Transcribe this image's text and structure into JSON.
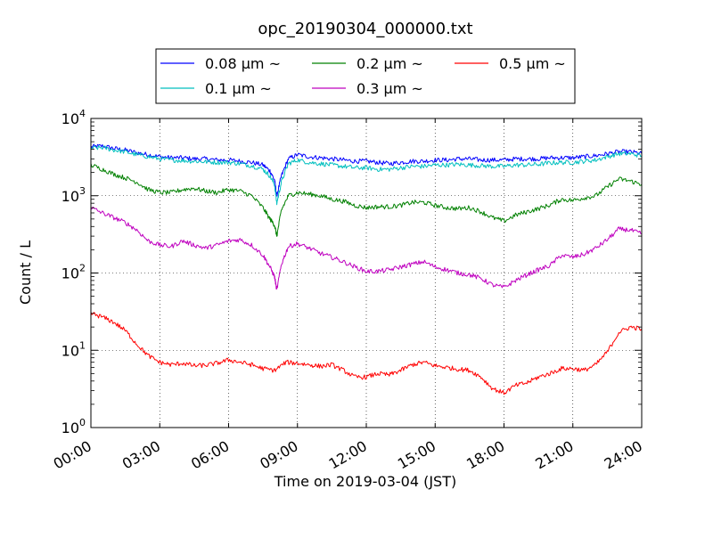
{
  "chart_data": {
    "type": "line",
    "title": "opc_20190304_000000.txt",
    "xlabel": "Time on 2019-03-04 (JST)",
    "ylabel": "Count / L",
    "x_unit": "hour of day",
    "xlim": [
      0,
      24
    ],
    "ylim": [
      1,
      10000
    ],
    "y_scale": "log",
    "grid": true,
    "legend_position": "top-center",
    "x_ticks": [
      {
        "hour": 0,
        "label": "00:00"
      },
      {
        "hour": 3,
        "label": "03:00"
      },
      {
        "hour": 6,
        "label": "06:00"
      },
      {
        "hour": 9,
        "label": "09:00"
      },
      {
        "hour": 12,
        "label": "12:00"
      },
      {
        "hour": 15,
        "label": "15:00"
      },
      {
        "hour": 18,
        "label": "18:00"
      },
      {
        "hour": 21,
        "label": "21:00"
      },
      {
        "hour": 24,
        "label": "24:00"
      }
    ],
    "y_ticks": [
      {
        "value": 1,
        "exp": "0"
      },
      {
        "value": 10,
        "exp": "1"
      },
      {
        "value": 100,
        "exp": "2"
      },
      {
        "value": 1000,
        "exp": "3"
      },
      {
        "value": 10000,
        "exp": "4"
      }
    ],
    "series": [
      {
        "name": "0.08 μm ~",
        "color": "#0000ff",
        "points": [
          [
            0,
            4300
          ],
          [
            0.5,
            4400
          ],
          [
            1,
            4100
          ],
          [
            1.5,
            3900
          ],
          [
            2,
            3600
          ],
          [
            2.5,
            3400
          ],
          [
            3,
            3200
          ],
          [
            3.5,
            3100
          ],
          [
            4,
            3100
          ],
          [
            4.5,
            3000
          ],
          [
            5,
            3000
          ],
          [
            5.5,
            2900
          ],
          [
            6,
            2900
          ],
          [
            6.5,
            2800
          ],
          [
            7,
            2700
          ],
          [
            7.5,
            2500
          ],
          [
            7.8,
            2100
          ],
          [
            8,
            1600
          ],
          [
            8.1,
            1000
          ],
          [
            8.3,
            1800
          ],
          [
            8.6,
            3000
          ],
          [
            9,
            3400
          ],
          [
            9.5,
            3200
          ],
          [
            10,
            3100
          ],
          [
            10.5,
            3000
          ],
          [
            11,
            2900
          ],
          [
            11.5,
            2800
          ],
          [
            12,
            2800
          ],
          [
            12.5,
            2700
          ],
          [
            13,
            2600
          ],
          [
            13.5,
            2700
          ],
          [
            14,
            2800
          ],
          [
            14.5,
            2800
          ],
          [
            15,
            2900
          ],
          [
            15.5,
            2900
          ],
          [
            16,
            3000
          ],
          [
            16.5,
            3000
          ],
          [
            17,
            2900
          ],
          [
            17.5,
            2900
          ],
          [
            18,
            2900
          ],
          [
            18.5,
            3000
          ],
          [
            19,
            3000
          ],
          [
            19.5,
            3000
          ],
          [
            20,
            3100
          ],
          [
            20.5,
            3100
          ],
          [
            21,
            3100
          ],
          [
            21.5,
            3200
          ],
          [
            22,
            3300
          ],
          [
            22.5,
            3500
          ],
          [
            23,
            3700
          ],
          [
            23.5,
            3700
          ],
          [
            24,
            3500
          ]
        ]
      },
      {
        "name": "0.1 μm ~",
        "color": "#00bfbf",
        "points": [
          [
            0,
            4100
          ],
          [
            0.5,
            4200
          ],
          [
            1,
            3900
          ],
          [
            1.5,
            3700
          ],
          [
            2,
            3400
          ],
          [
            2.5,
            3200
          ],
          [
            3,
            3000
          ],
          [
            3.5,
            2900
          ],
          [
            4,
            2850
          ],
          [
            4.5,
            2800
          ],
          [
            5,
            2750
          ],
          [
            5.5,
            2700
          ],
          [
            6,
            2700
          ],
          [
            6.5,
            2600
          ],
          [
            7,
            2450
          ],
          [
            7.5,
            2200
          ],
          [
            7.8,
            1800
          ],
          [
            8,
            1400
          ],
          [
            8.1,
            800
          ],
          [
            8.3,
            1500
          ],
          [
            8.6,
            2600
          ],
          [
            9,
            2900
          ],
          [
            9.5,
            2700
          ],
          [
            10,
            2600
          ],
          [
            10.5,
            2500
          ],
          [
            11,
            2400
          ],
          [
            11.5,
            2300
          ],
          [
            12,
            2300
          ],
          [
            12.5,
            2200
          ],
          [
            13,
            2200
          ],
          [
            13.5,
            2300
          ],
          [
            14,
            2400
          ],
          [
            14.5,
            2400
          ],
          [
            15,
            2500
          ],
          [
            15.5,
            2500
          ],
          [
            16,
            2550
          ],
          [
            16.5,
            2500
          ],
          [
            17,
            2450
          ],
          [
            17.5,
            2400
          ],
          [
            18,
            2400
          ],
          [
            18.5,
            2500
          ],
          [
            19,
            2500
          ],
          [
            19.5,
            2550
          ],
          [
            20,
            2650
          ],
          [
            20.5,
            2700
          ],
          [
            21,
            2700
          ],
          [
            21.5,
            2800
          ],
          [
            22,
            2900
          ],
          [
            22.5,
            3200
          ],
          [
            23,
            3500
          ],
          [
            23.5,
            3500
          ],
          [
            24,
            3300
          ]
        ]
      },
      {
        "name": "0.2 μm ~",
        "color": "#008000",
        "points": [
          [
            0,
            2500
          ],
          [
            0.5,
            2200
          ],
          [
            1,
            1900
          ],
          [
            1.5,
            1700
          ],
          [
            2,
            1500
          ],
          [
            2.5,
            1200
          ],
          [
            3,
            1100
          ],
          [
            3.5,
            1100
          ],
          [
            4,
            1200
          ],
          [
            4.5,
            1250
          ],
          [
            5,
            1150
          ],
          [
            5.5,
            1100
          ],
          [
            6,
            1200
          ],
          [
            6.5,
            1150
          ],
          [
            7,
            1000
          ],
          [
            7.5,
            700
          ],
          [
            7.8,
            500
          ],
          [
            8,
            420
          ],
          [
            8.1,
            300
          ],
          [
            8.3,
            650
          ],
          [
            8.6,
            1000
          ],
          [
            9,
            1100
          ],
          [
            9.5,
            1050
          ],
          [
            10,
            1000
          ],
          [
            10.5,
            900
          ],
          [
            11,
            850
          ],
          [
            11.5,
            750
          ],
          [
            12,
            700
          ],
          [
            12.5,
            720
          ],
          [
            13,
            720
          ],
          [
            13.5,
            750
          ],
          [
            14,
            820
          ],
          [
            14.5,
            820
          ],
          [
            15,
            750
          ],
          [
            15.5,
            700
          ],
          [
            16,
            680
          ],
          [
            16.5,
            700
          ],
          [
            17,
            620
          ],
          [
            17.5,
            520
          ],
          [
            18,
            470
          ],
          [
            18.5,
            560
          ],
          [
            19,
            620
          ],
          [
            19.5,
            680
          ],
          [
            20,
            760
          ],
          [
            20.5,
            900
          ],
          [
            21,
            870
          ],
          [
            21.5,
            940
          ],
          [
            22,
            1000
          ],
          [
            22.5,
            1300
          ],
          [
            23,
            1650
          ],
          [
            23.5,
            1550
          ],
          [
            24,
            1400
          ]
        ]
      },
      {
        "name": "0.3 μm ~",
        "color": "#bf00bf",
        "points": [
          [
            0,
            700
          ],
          [
            0.5,
            600
          ],
          [
            1,
            520
          ],
          [
            1.5,
            450
          ],
          [
            2,
            360
          ],
          [
            2.5,
            260
          ],
          [
            3,
            230
          ],
          [
            3.5,
            220
          ],
          [
            4,
            260
          ],
          [
            4.5,
            230
          ],
          [
            5,
            210
          ],
          [
            5.5,
            230
          ],
          [
            6,
            260
          ],
          [
            6.5,
            270
          ],
          [
            7,
            230
          ],
          [
            7.5,
            170
          ],
          [
            7.8,
            120
          ],
          [
            8,
            90
          ],
          [
            8.1,
            60
          ],
          [
            8.3,
            130
          ],
          [
            8.6,
            220
          ],
          [
            9,
            240
          ],
          [
            9.5,
            210
          ],
          [
            10,
            180
          ],
          [
            10.5,
            160
          ],
          [
            11,
            140
          ],
          [
            11.5,
            120
          ],
          [
            12,
            105
          ],
          [
            12.5,
            105
          ],
          [
            13,
            110
          ],
          [
            13.5,
            120
          ],
          [
            14,
            130
          ],
          [
            14.5,
            140
          ],
          [
            15,
            120
          ],
          [
            15.5,
            110
          ],
          [
            16,
            100
          ],
          [
            16.5,
            95
          ],
          [
            17,
            85
          ],
          [
            17.5,
            70
          ],
          [
            18,
            65
          ],
          [
            18.5,
            80
          ],
          [
            19,
            95
          ],
          [
            19.5,
            110
          ],
          [
            20,
            125
          ],
          [
            20.5,
            170
          ],
          [
            21,
            160
          ],
          [
            21.5,
            175
          ],
          [
            22,
            210
          ],
          [
            22.5,
            270
          ],
          [
            23,
            370
          ],
          [
            23.5,
            360
          ],
          [
            24,
            320
          ]
        ]
      },
      {
        "name": "0.5 μm ~",
        "color": "#ff0000",
        "points": [
          [
            0,
            30
          ],
          [
            0.5,
            27
          ],
          [
            1,
            23
          ],
          [
            1.5,
            18
          ],
          [
            2,
            12
          ],
          [
            2.5,
            8.5
          ],
          [
            3,
            7
          ],
          [
            3.5,
            6.5
          ],
          [
            4,
            6.8
          ],
          [
            4.5,
            6.3
          ],
          [
            5,
            6.4
          ],
          [
            5.5,
            6.8
          ],
          [
            6,
            7.5
          ],
          [
            6.5,
            7
          ],
          [
            7,
            6.5
          ],
          [
            7.5,
            5.8
          ],
          [
            8,
            5.5
          ],
          [
            8.5,
            7
          ],
          [
            9,
            6.8
          ],
          [
            9.5,
            6.5
          ],
          [
            10,
            6.2
          ],
          [
            10.5,
            6.5
          ],
          [
            11,
            5.5
          ],
          [
            11.5,
            4.5
          ],
          [
            12,
            4.5
          ],
          [
            12.5,
            5
          ],
          [
            13,
            4.8
          ],
          [
            13.5,
            5.5
          ],
          [
            14,
            6.5
          ],
          [
            14.5,
            7
          ],
          [
            15,
            6.3
          ],
          [
            15.5,
            6
          ],
          [
            16,
            5.7
          ],
          [
            16.5,
            5.5
          ],
          [
            17,
            4.5
          ],
          [
            17.5,
            3.2
          ],
          [
            18,
            2.8
          ],
          [
            18.5,
            3.5
          ],
          [
            19,
            3.8
          ],
          [
            19.5,
            4.5
          ],
          [
            20,
            5
          ],
          [
            20.5,
            5.8
          ],
          [
            21,
            5.8
          ],
          [
            21.5,
            5.5
          ],
          [
            22,
            6.5
          ],
          [
            22.5,
            9.5
          ],
          [
            23,
            17
          ],
          [
            23.5,
            20
          ],
          [
            24,
            19
          ]
        ]
      }
    ]
  }
}
